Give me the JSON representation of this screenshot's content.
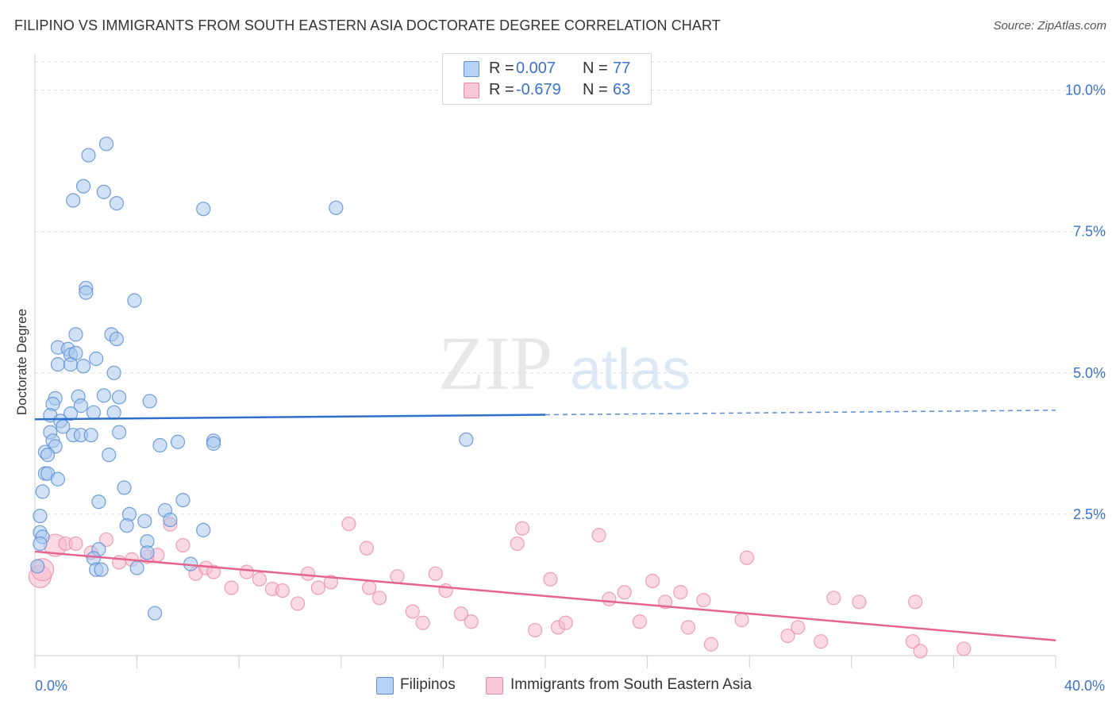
{
  "title": "FILIPINO VS IMMIGRANTS FROM SOUTH EASTERN ASIA DOCTORATE DEGREE CORRELATION CHART",
  "source": "Source: ZipAtlas.com",
  "watermark": {
    "zip": "ZIP",
    "atlas": "atlas"
  },
  "legend": {
    "rows": [
      {
        "r_label": "R =",
        "r_value": "0.007",
        "n_label": "N =",
        "n_value": "77"
      },
      {
        "r_label": "R =",
        "r_value": "-0.679",
        "n_label": "N =",
        "n_value": "63"
      }
    ]
  },
  "colors": {
    "blue_fill": "#a9c8ef",
    "blue_stroke": "#5b8fd4",
    "blue_line": "#2f6fcc",
    "pink_fill": "#f6b9cc",
    "pink_stroke": "#e98aa8",
    "pink_line": "#e4648f",
    "axis_text": "#3a73c8",
    "grid": "#dddddd"
  },
  "chart_data": {
    "type": "scatter",
    "title": "FILIPINO VS IMMIGRANTS FROM SOUTH EASTERN ASIA DOCTORATE DEGREE CORRELATION CHART",
    "xlabel": "",
    "ylabel": "Doctorate Degree",
    "xlim": [
      0,
      40
    ],
    "ylim": [
      0,
      10.5
    ],
    "x_tick_labels": [
      "0.0%",
      "40.0%"
    ],
    "y_ticks": [
      2.5,
      5.0,
      7.5,
      10.0
    ],
    "y_tick_labels": [
      "2.5%",
      "5.0%",
      "7.5%",
      "10.0%"
    ],
    "grid": true,
    "series": [
      {
        "name": "Filipinos",
        "color": "#5b8fd4",
        "r": "0.007",
        "n": "77",
        "trend": {
          "x0": 0,
          "y0": 4.18,
          "x1": 20,
          "y1": 4.26,
          "dashed_to_x": 40,
          "dashed_to_y": 4.34
        },
        "points": [
          [
            2.8,
            9.05
          ],
          [
            2.1,
            8.85
          ],
          [
            1.9,
            8.3
          ],
          [
            2.7,
            8.2
          ],
          [
            1.5,
            8.05
          ],
          [
            3.2,
            8.0
          ],
          [
            6.6,
            7.9
          ],
          [
            11.8,
            7.92
          ],
          [
            2.0,
            6.5
          ],
          [
            2.0,
            6.42
          ],
          [
            3.9,
            6.28
          ],
          [
            1.6,
            5.68
          ],
          [
            3.0,
            5.68
          ],
          [
            3.2,
            5.6
          ],
          [
            0.9,
            5.45
          ],
          [
            1.3,
            5.42
          ],
          [
            1.4,
            5.32
          ],
          [
            1.6,
            5.35
          ],
          [
            2.4,
            5.25
          ],
          [
            0.9,
            5.15
          ],
          [
            1.4,
            5.15
          ],
          [
            1.9,
            5.12
          ],
          [
            3.1,
            5.0
          ],
          [
            0.8,
            4.55
          ],
          [
            1.7,
            4.58
          ],
          [
            2.7,
            4.6
          ],
          [
            3.3,
            4.57
          ],
          [
            4.5,
            4.5
          ],
          [
            0.7,
            4.45
          ],
          [
            1.8,
            4.42
          ],
          [
            0.6,
            4.25
          ],
          [
            1.4,
            4.28
          ],
          [
            2.3,
            4.3
          ],
          [
            3.1,
            4.3
          ],
          [
            1.0,
            4.15
          ],
          [
            1.1,
            4.05
          ],
          [
            0.6,
            3.95
          ],
          [
            1.5,
            3.9
          ],
          [
            1.8,
            3.9
          ],
          [
            2.2,
            3.9
          ],
          [
            3.3,
            3.95
          ],
          [
            0.7,
            3.8
          ],
          [
            0.8,
            3.7
          ],
          [
            5.6,
            3.78
          ],
          [
            4.9,
            3.72
          ],
          [
            7.0,
            3.8
          ],
          [
            7.0,
            3.75
          ],
          [
            16.9,
            3.82
          ],
          [
            0.4,
            3.6
          ],
          [
            0.5,
            3.55
          ],
          [
            2.9,
            3.55
          ],
          [
            0.4,
            3.22
          ],
          [
            0.5,
            3.22
          ],
          [
            0.9,
            3.12
          ],
          [
            3.5,
            2.97
          ],
          [
            0.3,
            2.9
          ],
          [
            2.5,
            2.72
          ],
          [
            5.8,
            2.75
          ],
          [
            5.1,
            2.57
          ],
          [
            3.7,
            2.5
          ],
          [
            0.2,
            2.47
          ],
          [
            4.3,
            2.38
          ],
          [
            5.3,
            2.4
          ],
          [
            3.6,
            2.3
          ],
          [
            6.6,
            2.22
          ],
          [
            0.2,
            2.18
          ],
          [
            0.3,
            2.1
          ],
          [
            4.4,
            2.02
          ],
          [
            0.2,
            1.98
          ],
          [
            2.5,
            1.88
          ],
          [
            4.4,
            1.82
          ],
          [
            2.3,
            1.72
          ],
          [
            6.1,
            1.62
          ],
          [
            2.4,
            1.52
          ],
          [
            2.6,
            1.52
          ],
          [
            4.0,
            1.55
          ],
          [
            0.1,
            1.58
          ],
          [
            4.7,
            0.75
          ]
        ]
      },
      {
        "name": "Immigrants from South Eastern Asia",
        "color": "#e98aa8",
        "r": "-0.679",
        "n": "63",
        "trend": {
          "x0": 0,
          "y0": 1.84,
          "x1": 40,
          "y1": 0.27
        },
        "points": [
          [
            0.2,
            1.4
          ],
          [
            0.8,
            1.95
          ],
          [
            1.2,
            1.98
          ],
          [
            1.6,
            1.98
          ],
          [
            2.8,
            2.05
          ],
          [
            2.2,
            1.82
          ],
          [
            3.3,
            1.65
          ],
          [
            3.8,
            1.7
          ],
          [
            4.4,
            1.75
          ],
          [
            4.8,
            1.78
          ],
          [
            5.3,
            2.32
          ],
          [
            5.8,
            1.95
          ],
          [
            6.3,
            1.45
          ],
          [
            6.7,
            1.55
          ],
          [
            7.0,
            1.48
          ],
          [
            7.7,
            1.2
          ],
          [
            8.3,
            1.48
          ],
          [
            8.8,
            1.35
          ],
          [
            9.3,
            1.18
          ],
          [
            9.7,
            1.15
          ],
          [
            10.3,
            0.92
          ],
          [
            10.7,
            1.45
          ],
          [
            11.1,
            1.2
          ],
          [
            11.6,
            1.3
          ],
          [
            12.3,
            2.33
          ],
          [
            13.1,
            1.2
          ],
          [
            13.0,
            1.9
          ],
          [
            13.5,
            1.02
          ],
          [
            14.2,
            1.4
          ],
          [
            14.8,
            0.78
          ],
          [
            15.2,
            0.58
          ],
          [
            15.7,
            1.45
          ],
          [
            16.1,
            1.15
          ],
          [
            16.7,
            0.74
          ],
          [
            17.1,
            0.6
          ],
          [
            18.9,
            1.98
          ],
          [
            19.1,
            2.25
          ],
          [
            19.6,
            0.45
          ],
          [
            20.2,
            1.35
          ],
          [
            20.5,
            0.5
          ],
          [
            20.8,
            0.58
          ],
          [
            22.1,
            2.13
          ],
          [
            22.5,
            1.0
          ],
          [
            23.1,
            1.12
          ],
          [
            23.7,
            0.6
          ],
          [
            24.2,
            1.32
          ],
          [
            24.7,
            0.95
          ],
          [
            25.3,
            1.12
          ],
          [
            25.6,
            0.5
          ],
          [
            26.2,
            0.98
          ],
          [
            26.5,
            0.2
          ],
          [
            27.7,
            0.63
          ],
          [
            27.9,
            1.73
          ],
          [
            29.5,
            0.35
          ],
          [
            29.9,
            0.5
          ],
          [
            30.8,
            0.25
          ],
          [
            31.3,
            1.02
          ],
          [
            32.3,
            0.95
          ],
          [
            34.4,
            0.25
          ],
          [
            34.5,
            0.95
          ],
          [
            34.7,
            0.08
          ],
          [
            36.4,
            0.12
          ],
          [
            0.3,
            1.52
          ]
        ]
      }
    ]
  },
  "bottom_legend": {
    "item1": "Filipinos",
    "item2": "Immigrants from South Eastern Asia"
  }
}
